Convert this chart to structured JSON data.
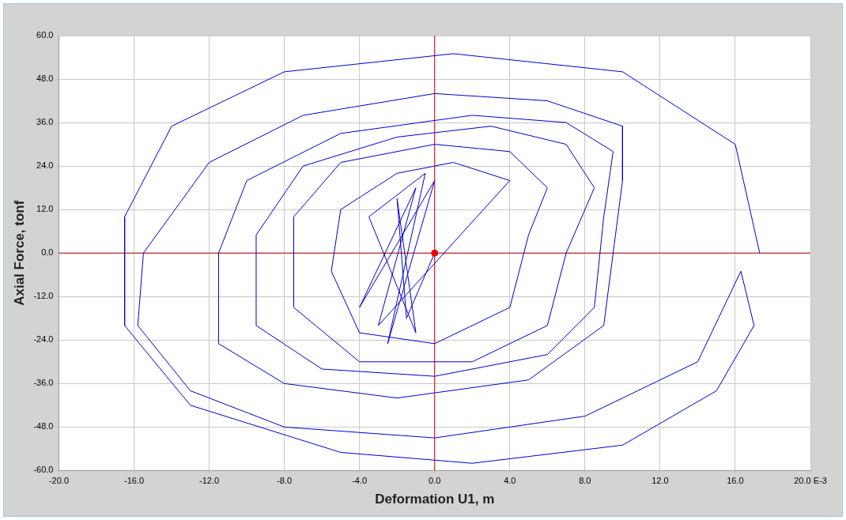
{
  "chart_data": {
    "type": "line",
    "xlabel": "Deformation U1, m",
    "ylabel": "Axial Force, tonf",
    "xlim": [
      -20,
      20
    ],
    "xticks": [
      {
        "value": -20,
        "label": "-20.0"
      },
      {
        "value": -16,
        "label": "-16.0"
      },
      {
        "value": -12,
        "label": "-12.0"
      },
      {
        "value": -8,
        "label": "-8.0"
      },
      {
        "value": -4,
        "label": "-4.0"
      },
      {
        "value": 0,
        "label": "0.0"
      },
      {
        "value": 4,
        "label": "4.0"
      },
      {
        "value": 8,
        "label": "8.0"
      },
      {
        "value": 12,
        "label": "12.0"
      },
      {
        "value": 16,
        "label": "16.0"
      },
      {
        "value": 20,
        "label": "20.0 E-3"
      }
    ],
    "ylim": [
      -60,
      60
    ],
    "yticks": [
      {
        "value": -60,
        "label": "-60.0"
      },
      {
        "value": -48,
        "label": "-48.0"
      },
      {
        "value": -36,
        "label": "-36.0"
      },
      {
        "value": -24,
        "label": "-24.0"
      },
      {
        "value": -12,
        "label": "-12.0"
      },
      {
        "value": 0,
        "label": "0.0"
      },
      {
        "value": 12,
        "label": "12.0"
      },
      {
        "value": 24,
        "label": "24.0"
      },
      {
        "value": 36,
        "label": "36.0"
      },
      {
        "value": 48,
        "label": "48.0"
      },
      {
        "value": 60,
        "label": "60.0"
      }
    ],
    "grid": true,
    "legend": false,
    "marker": "none",
    "line_style": "solid",
    "ref_lines": [
      {
        "axis": "x",
        "value": 0,
        "color": "#dd0000"
      },
      {
        "axis": "y",
        "value": 0,
        "color": "#aa0000"
      }
    ],
    "series": [
      {
        "color": "#0000cc",
        "x": [
          17.3,
          16,
          10,
          1,
          -8,
          -14,
          -16.5,
          -16.5,
          -13,
          -5,
          2,
          10,
          15,
          17,
          16.3,
          14,
          8,
          0,
          -8,
          -13,
          -15.8,
          -15.5,
          -12,
          -7,
          0,
          6,
          10,
          10,
          9,
          5,
          -2,
          -8,
          -11.5,
          -11.5,
          -10,
          -5,
          2,
          7,
          9.5,
          9,
          8.5,
          6,
          0,
          -6,
          -9.5,
          -9.5,
          -7,
          -2,
          3,
          7,
          8.5,
          7,
          6,
          2,
          -4,
          -7.5,
          -7.5,
          -5,
          0,
          4,
          6,
          5,
          4,
          0,
          -4,
          -5.5,
          -5,
          -2,
          1,
          4,
          -3,
          -1,
          -4,
          0,
          -2.5,
          -0.5,
          -3.5,
          -1,
          -2,
          -1.5,
          0
        ],
        "values": [
          0,
          30,
          50,
          55,
          50,
          35,
          10,
          -20,
          -42,
          -55,
          -58,
          -53,
          -38,
          -20,
          -5,
          -30,
          -45,
          -51,
          -48,
          -38,
          -20,
          0,
          25,
          38,
          44,
          42,
          35,
          20,
          -20,
          -35,
          -40,
          -36,
          -25,
          0,
          20,
          33,
          38,
          36,
          28,
          10,
          -15,
          -28,
          -34,
          -32,
          -20,
          5,
          24,
          32,
          35,
          30,
          18,
          0,
          -20,
          -30,
          -30,
          -15,
          10,
          25,
          30,
          28,
          18,
          5,
          -15,
          -25,
          -22,
          -5,
          12,
          22,
          25,
          20,
          -20,
          18,
          -15,
          20,
          -25,
          22,
          10,
          -22,
          15,
          -18,
          0
        ]
      },
      {
        "type": "scatter",
        "color": "#ee0000",
        "marker": "circle",
        "x": [
          0
        ],
        "values": [
          0
        ]
      }
    ]
  }
}
